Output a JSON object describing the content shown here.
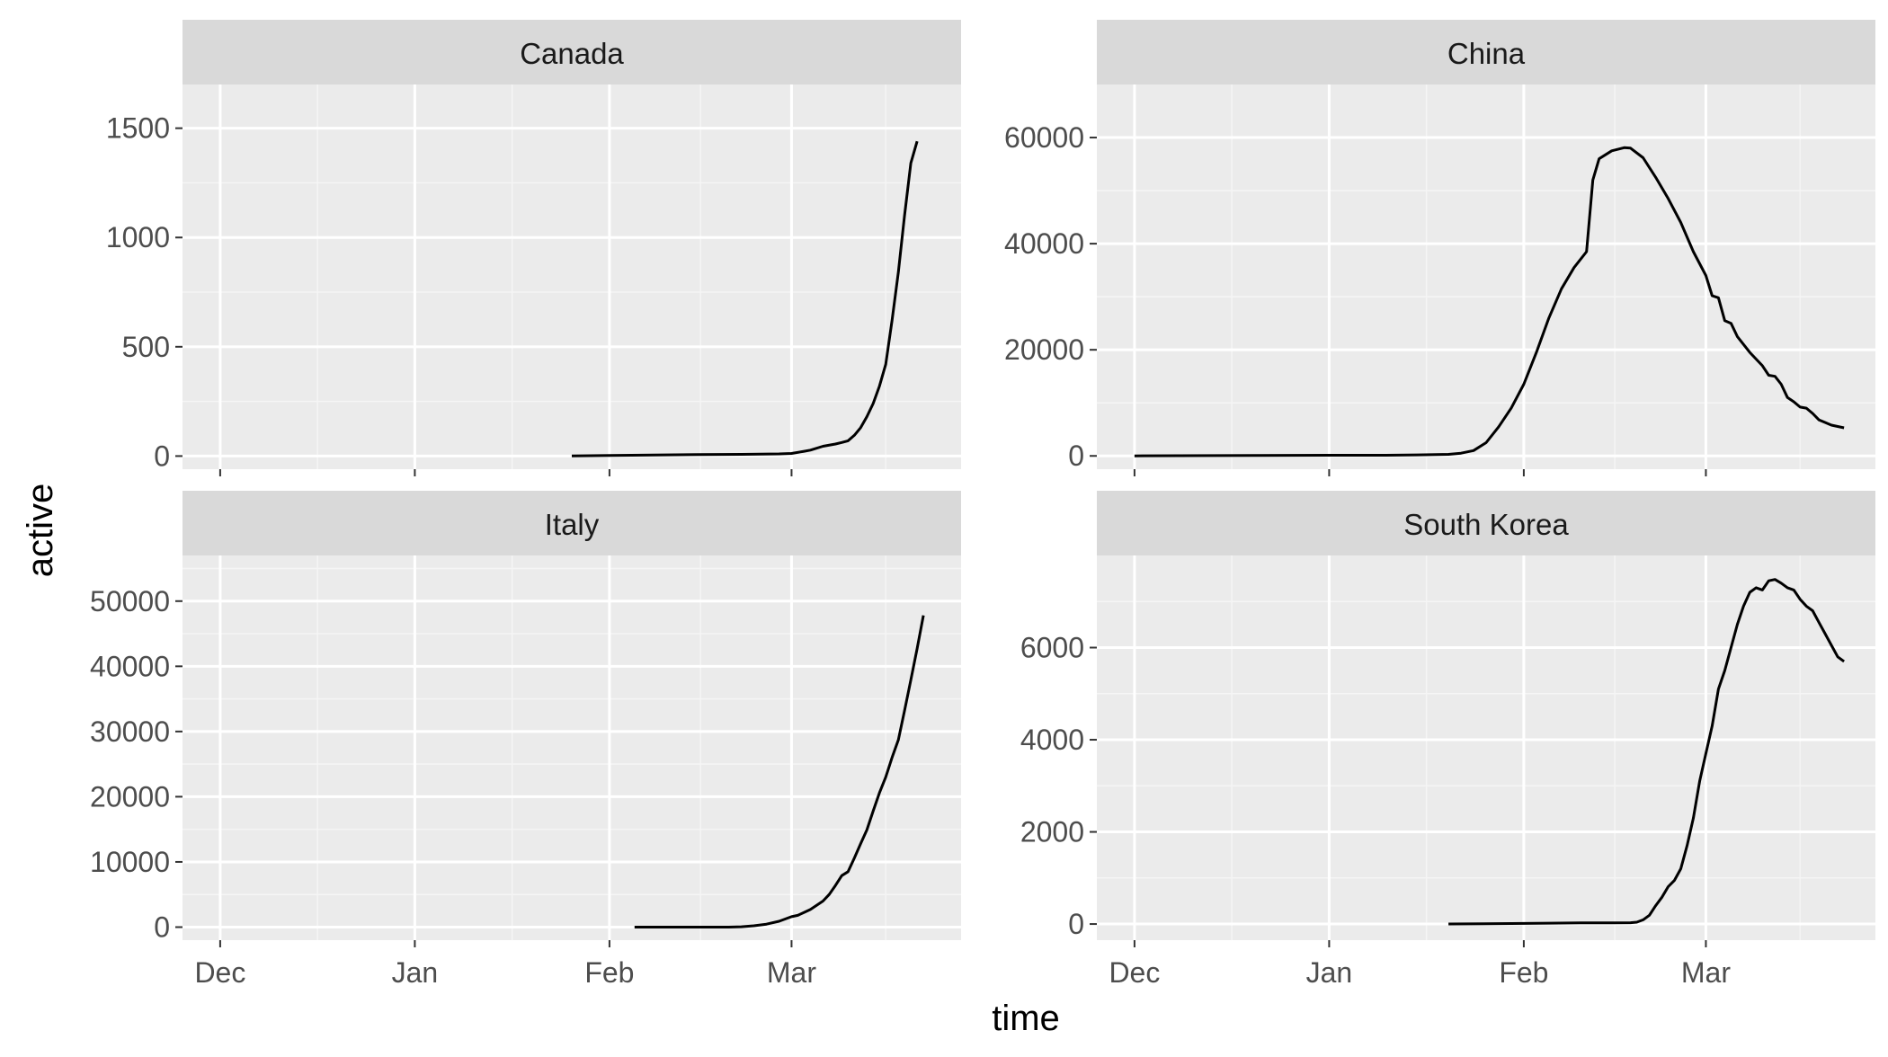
{
  "chart_data": {
    "type": "line",
    "facet_layout": "2x2",
    "xlabel": "time",
    "ylabel": "active",
    "x_tick_labels": [
      "Dec",
      "Jan",
      "Feb",
      "Mar"
    ],
    "x_tick_dates": [
      "2019-12-01",
      "2020-01-01",
      "2020-02-01",
      "2020-03-01"
    ],
    "xlim": [
      "2019-11-25",
      "2020-03-28"
    ],
    "grid": true,
    "panels": [
      {
        "title": "Canada",
        "ylim": [
          -60,
          1700
        ],
        "y_ticks": [
          0,
          500,
          1000,
          1500
        ],
        "series": [
          {
            "x": "2020-01-26",
            "y": 1
          },
          {
            "x": "2020-02-01",
            "y": 3
          },
          {
            "x": "2020-02-08",
            "y": 5
          },
          {
            "x": "2020-02-15",
            "y": 7
          },
          {
            "x": "2020-02-22",
            "y": 8
          },
          {
            "x": "2020-02-28",
            "y": 10
          },
          {
            "x": "2020-03-01",
            "y": 12
          },
          {
            "x": "2020-03-03",
            "y": 22
          },
          {
            "x": "2020-03-04",
            "y": 27
          },
          {
            "x": "2020-03-06",
            "y": 45
          },
          {
            "x": "2020-03-08",
            "y": 55
          },
          {
            "x": "2020-03-09",
            "y": 62
          },
          {
            "x": "2020-03-10",
            "y": 70
          },
          {
            "x": "2020-03-11",
            "y": 95
          },
          {
            "x": "2020-03-12",
            "y": 130
          },
          {
            "x": "2020-03-13",
            "y": 180
          },
          {
            "x": "2020-03-14",
            "y": 240
          },
          {
            "x": "2020-03-15",
            "y": 320
          },
          {
            "x": "2020-03-16",
            "y": 420
          },
          {
            "x": "2020-03-17",
            "y": 620
          },
          {
            "x": "2020-03-18",
            "y": 840
          },
          {
            "x": "2020-03-19",
            "y": 1100
          },
          {
            "x": "2020-03-20",
            "y": 1340
          },
          {
            "x": "2020-03-21",
            "y": 1440
          }
        ]
      },
      {
        "title": "China",
        "ylim": [
          -2500,
          70000
        ],
        "y_ticks": [
          0,
          20000,
          40000,
          60000
        ],
        "series": [
          {
            "x": "2019-12-01",
            "y": 0
          },
          {
            "x": "2019-12-20",
            "y": 100
          },
          {
            "x": "2020-01-01",
            "y": 120
          },
          {
            "x": "2020-01-10",
            "y": 130
          },
          {
            "x": "2020-01-15",
            "y": 200
          },
          {
            "x": "2020-01-20",
            "y": 290
          },
          {
            "x": "2020-01-22",
            "y": 510
          },
          {
            "x": "2020-01-24",
            "y": 1000
          },
          {
            "x": "2020-01-26",
            "y": 2500
          },
          {
            "x": "2020-01-28",
            "y": 5500
          },
          {
            "x": "2020-01-30",
            "y": 9000
          },
          {
            "x": "2020-02-01",
            "y": 13500
          },
          {
            "x": "2020-02-03",
            "y": 19500
          },
          {
            "x": "2020-02-05",
            "y": 26000
          },
          {
            "x": "2020-02-07",
            "y": 31500
          },
          {
            "x": "2020-02-09",
            "y": 35500
          },
          {
            "x": "2020-02-11",
            "y": 38500
          },
          {
            "x": "2020-02-12",
            "y": 52000
          },
          {
            "x": "2020-02-13",
            "y": 56000
          },
          {
            "x": "2020-02-15",
            "y": 57500
          },
          {
            "x": "2020-02-17",
            "y": 58100
          },
          {
            "x": "2020-02-18",
            "y": 58000
          },
          {
            "x": "2020-02-20",
            "y": 56200
          },
          {
            "x": "2020-02-22",
            "y": 52500
          },
          {
            "x": "2020-02-24",
            "y": 48500
          },
          {
            "x": "2020-02-26",
            "y": 44000
          },
          {
            "x": "2020-02-28",
            "y": 38500
          },
          {
            "x": "2020-03-01",
            "y": 34000
          },
          {
            "x": "2020-03-02",
            "y": 30200
          },
          {
            "x": "2020-03-03",
            "y": 29800
          },
          {
            "x": "2020-03-04",
            "y": 25500
          },
          {
            "x": "2020-03-05",
            "y": 25000
          },
          {
            "x": "2020-03-06",
            "y": 22500
          },
          {
            "x": "2020-03-08",
            "y": 19500
          },
          {
            "x": "2020-03-10",
            "y": 17000
          },
          {
            "x": "2020-03-11",
            "y": 15200
          },
          {
            "x": "2020-03-12",
            "y": 15000
          },
          {
            "x": "2020-03-13",
            "y": 13500
          },
          {
            "x": "2020-03-14",
            "y": 11000
          },
          {
            "x": "2020-03-15",
            "y": 10200
          },
          {
            "x": "2020-03-16",
            "y": 9200
          },
          {
            "x": "2020-03-17",
            "y": 9000
          },
          {
            "x": "2020-03-18",
            "y": 8000
          },
          {
            "x": "2020-03-19",
            "y": 6800
          },
          {
            "x": "2020-03-21",
            "y": 5800
          },
          {
            "x": "2020-03-23",
            "y": 5300
          }
        ]
      },
      {
        "title": "Italy",
        "ylim": [
          -2000,
          57000
        ],
        "y_ticks": [
          0,
          10000,
          20000,
          30000,
          40000,
          50000
        ],
        "series": [
          {
            "x": "2020-02-05",
            "y": 3
          },
          {
            "x": "2020-02-15",
            "y": 3
          },
          {
            "x": "2020-02-20",
            "y": 3
          },
          {
            "x": "2020-02-22",
            "y": 50
          },
          {
            "x": "2020-02-24",
            "y": 200
          },
          {
            "x": "2020-02-26",
            "y": 450
          },
          {
            "x": "2020-02-28",
            "y": 900
          },
          {
            "x": "2020-03-01",
            "y": 1600
          },
          {
            "x": "2020-03-02",
            "y": 1800
          },
          {
            "x": "2020-03-04",
            "y": 2700
          },
          {
            "x": "2020-03-06",
            "y": 4000
          },
          {
            "x": "2020-03-07",
            "y": 5000
          },
          {
            "x": "2020-03-08",
            "y": 6400
          },
          {
            "x": "2020-03-09",
            "y": 7900
          },
          {
            "x": "2020-03-10",
            "y": 8500
          },
          {
            "x": "2020-03-11",
            "y": 10600
          },
          {
            "x": "2020-03-12",
            "y": 12800
          },
          {
            "x": "2020-03-13",
            "y": 14900
          },
          {
            "x": "2020-03-14",
            "y": 17800
          },
          {
            "x": "2020-03-15",
            "y": 20600
          },
          {
            "x": "2020-03-16",
            "y": 23000
          },
          {
            "x": "2020-03-17",
            "y": 26000
          },
          {
            "x": "2020-03-18",
            "y": 28700
          },
          {
            "x": "2020-03-19",
            "y": 33200
          },
          {
            "x": "2020-03-20",
            "y": 37900
          },
          {
            "x": "2020-03-21",
            "y": 42700
          },
          {
            "x": "2020-03-22",
            "y": 47800
          }
        ]
      },
      {
        "title": "South Korea",
        "ylim": [
          -350,
          8000
        ],
        "y_ticks": [
          0,
          2000,
          4000,
          6000
        ],
        "series": [
          {
            "x": "2020-01-20",
            "y": 1
          },
          {
            "x": "2020-01-30",
            "y": 10
          },
          {
            "x": "2020-02-05",
            "y": 18
          },
          {
            "x": "2020-02-10",
            "y": 25
          },
          {
            "x": "2020-02-15",
            "y": 25
          },
          {
            "x": "2020-02-18",
            "y": 28
          },
          {
            "x": "2020-02-19",
            "y": 40
          },
          {
            "x": "2020-02-20",
            "y": 90
          },
          {
            "x": "2020-02-21",
            "y": 190
          },
          {
            "x": "2020-02-22",
            "y": 400
          },
          {
            "x": "2020-02-23",
            "y": 580
          },
          {
            "x": "2020-02-24",
            "y": 810
          },
          {
            "x": "2020-02-25",
            "y": 950
          },
          {
            "x": "2020-02-26",
            "y": 1200
          },
          {
            "x": "2020-02-27",
            "y": 1700
          },
          {
            "x": "2020-02-28",
            "y": 2300
          },
          {
            "x": "2020-02-29",
            "y": 3100
          },
          {
            "x": "2020-03-01",
            "y": 3700
          },
          {
            "x": "2020-03-02",
            "y": 4300
          },
          {
            "x": "2020-03-03",
            "y": 5100
          },
          {
            "x": "2020-03-04",
            "y": 5500
          },
          {
            "x": "2020-03-05",
            "y": 6000
          },
          {
            "x": "2020-03-06",
            "y": 6500
          },
          {
            "x": "2020-03-07",
            "y": 6900
          },
          {
            "x": "2020-03-08",
            "y": 7200
          },
          {
            "x": "2020-03-09",
            "y": 7300
          },
          {
            "x": "2020-03-10",
            "y": 7250
          },
          {
            "x": "2020-03-11",
            "y": 7450
          },
          {
            "x": "2020-03-12",
            "y": 7480
          },
          {
            "x": "2020-03-13",
            "y": 7400
          },
          {
            "x": "2020-03-14",
            "y": 7300
          },
          {
            "x": "2020-03-15",
            "y": 7250
          },
          {
            "x": "2020-03-16",
            "y": 7050
          },
          {
            "x": "2020-03-17",
            "y": 6900
          },
          {
            "x": "2020-03-18",
            "y": 6800
          },
          {
            "x": "2020-03-19",
            "y": 6550
          },
          {
            "x": "2020-03-20",
            "y": 6300
          },
          {
            "x": "2020-03-21",
            "y": 6050
          },
          {
            "x": "2020-03-22",
            "y": 5800
          },
          {
            "x": "2020-03-23",
            "y": 5700
          }
        ]
      }
    ]
  },
  "style": {
    "panel_background": "#ebebeb",
    "strip_background": "#d9d9d9",
    "grid_major": "#ffffff",
    "grid_minor": "#f5f5f5",
    "line_color": "#000000"
  }
}
